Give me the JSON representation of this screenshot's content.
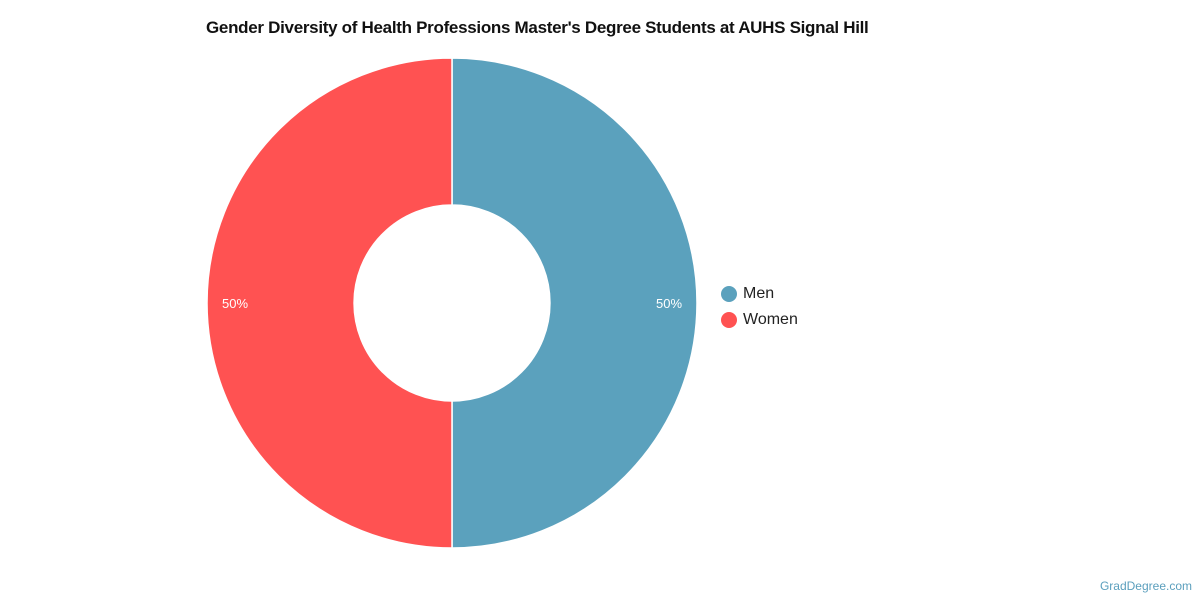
{
  "chart_data": {
    "type": "pie",
    "variant": "donut",
    "title": "Gender Diversity of Health Professions Master's Degree Students at AUHS Signal Hill",
    "categories": [
      "Men",
      "Women"
    ],
    "values": [
      50,
      50
    ],
    "labels": [
      "50%",
      "50%"
    ],
    "colors": [
      "#5ba1bd",
      "#ff5252"
    ],
    "legend_position": "right"
  },
  "credit": "GradDegree.com"
}
